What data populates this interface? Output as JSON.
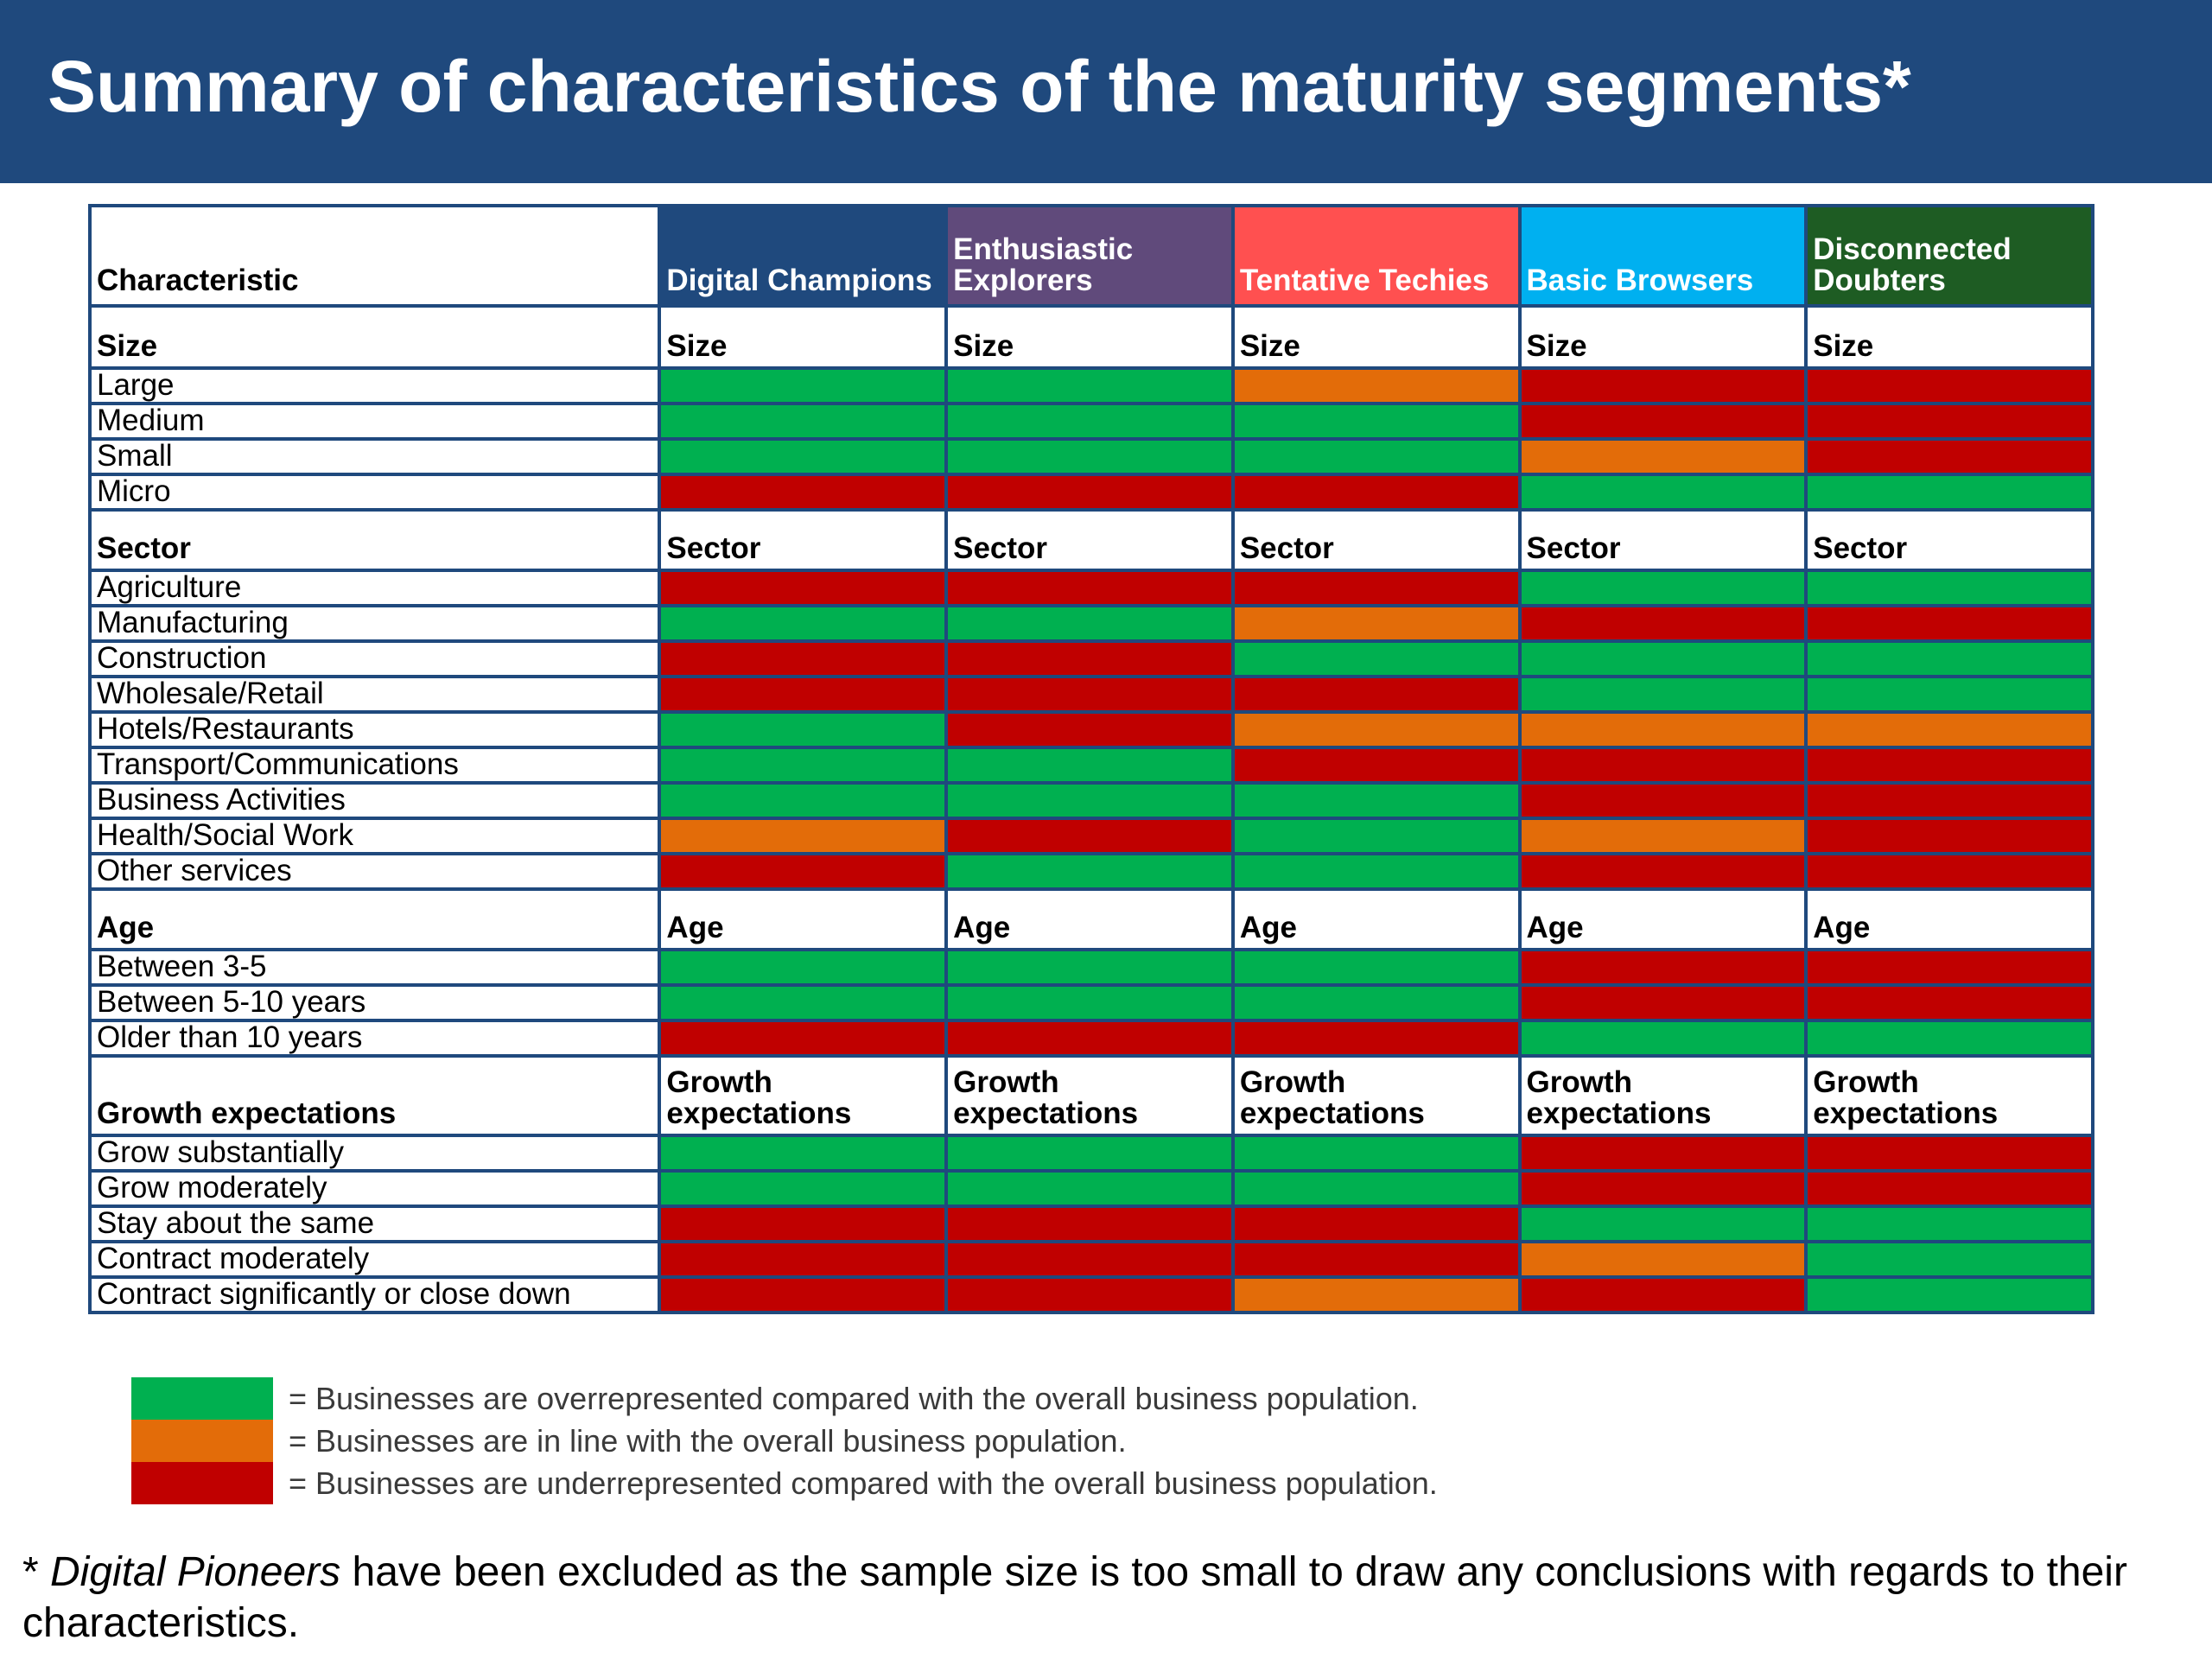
{
  "title": "Summary of characteristics of the maturity segments*",
  "colors": {
    "header_bg": "#1f497d",
    "over": "#00b050",
    "inline": "#e36c09",
    "under": "#c00000"
  },
  "table": {
    "characteristic_header": "Characteristic",
    "segments": [
      {
        "name": "Digital Champions",
        "color": "#1f497d"
      },
      {
        "name": "Enthusiastic Explorers",
        "color": "#604a7b"
      },
      {
        "name": "Tentative Techies",
        "color": "#ff5050"
      },
      {
        "name": "Basic Browsers",
        "color": "#00b0f0"
      },
      {
        "name": "Disconnected Doubters",
        "color": "#1e5c23"
      }
    ],
    "sections": [
      {
        "title": "Size",
        "column_label": "Size",
        "rows": [
          {
            "label": "Large",
            "cells": [
              "over",
              "over",
              "inline",
              "under",
              "under"
            ]
          },
          {
            "label": "Medium",
            "cells": [
              "over",
              "over",
              "over",
              "under",
              "under"
            ]
          },
          {
            "label": "Small",
            "cells": [
              "over",
              "over",
              "over",
              "inline",
              "under"
            ]
          },
          {
            "label": "Micro",
            "cells": [
              "under",
              "under",
              "under",
              "over",
              "over"
            ]
          }
        ]
      },
      {
        "title": "Sector",
        "column_label": "Sector",
        "rows": [
          {
            "label": "Agriculture",
            "cells": [
              "under",
              "under",
              "under",
              "over",
              "over"
            ]
          },
          {
            "label": "Manufacturing",
            "cells": [
              "over",
              "over",
              "inline",
              "under",
              "under"
            ]
          },
          {
            "label": "Construction",
            "cells": [
              "under",
              "under",
              "over",
              "over",
              "over"
            ]
          },
          {
            "label": "Wholesale/Retail",
            "cells": [
              "under",
              "under",
              "under",
              "over",
              "over"
            ]
          },
          {
            "label": "Hotels/Restaurants",
            "cells": [
              "over",
              "under",
              "inline",
              "inline",
              "inline"
            ]
          },
          {
            "label": "Transport/Communications",
            "cells": [
              "over",
              "over",
              "under",
              "under",
              "under"
            ]
          },
          {
            "label": "Business Activities",
            "cells": [
              "over",
              "over",
              "over",
              "under",
              "under"
            ]
          },
          {
            "label": "Health/Social Work",
            "cells": [
              "inline",
              "under",
              "over",
              "inline",
              "under"
            ]
          },
          {
            "label": "Other services",
            "cells": [
              "under",
              "over",
              "over",
              "under",
              "under"
            ]
          }
        ]
      },
      {
        "title": "Age",
        "column_label": "Age",
        "rows": [
          {
            "label": "Between 3-5",
            "cells": [
              "over",
              "over",
              "over",
              "under",
              "under"
            ]
          },
          {
            "label": "Between 5-10 years",
            "cells": [
              "over",
              "over",
              "over",
              "under",
              "under"
            ]
          },
          {
            "label": "Older than 10 years",
            "cells": [
              "under",
              "under",
              "under",
              "over",
              "over"
            ]
          }
        ]
      },
      {
        "title": "Growth expectations",
        "column_label": "Growth expectations",
        "rows": [
          {
            "label": "Grow substantially",
            "cells": [
              "over",
              "over",
              "over",
              "under",
              "under"
            ]
          },
          {
            "label": "Grow moderately",
            "cells": [
              "over",
              "over",
              "over",
              "under",
              "under"
            ]
          },
          {
            "label": "Stay about the same",
            "cells": [
              "under",
              "under",
              "under",
              "over",
              "over"
            ]
          },
          {
            "label": "Contract moderately",
            "cells": [
              "under",
              "under",
              "under",
              "inline",
              "over"
            ]
          },
          {
            "label": "Contract significantly or close down",
            "cells": [
              "under",
              "under",
              "inline",
              "under",
              "over"
            ]
          }
        ]
      }
    ]
  },
  "legend": [
    {
      "key": "over",
      "text": "= Businesses are overrepresented compared with the overall business population."
    },
    {
      "key": "inline",
      "text": "= Businesses are in line with the overall business population."
    },
    {
      "key": "under",
      "text": "= Businesses are underrepresented compared with the overall business population."
    }
  ],
  "footnote": {
    "prefix": "* ",
    "italic": "Digital Pioneers",
    "rest": " have been excluded as the sample size is too small to draw any conclusions with regards to their characteristics."
  }
}
